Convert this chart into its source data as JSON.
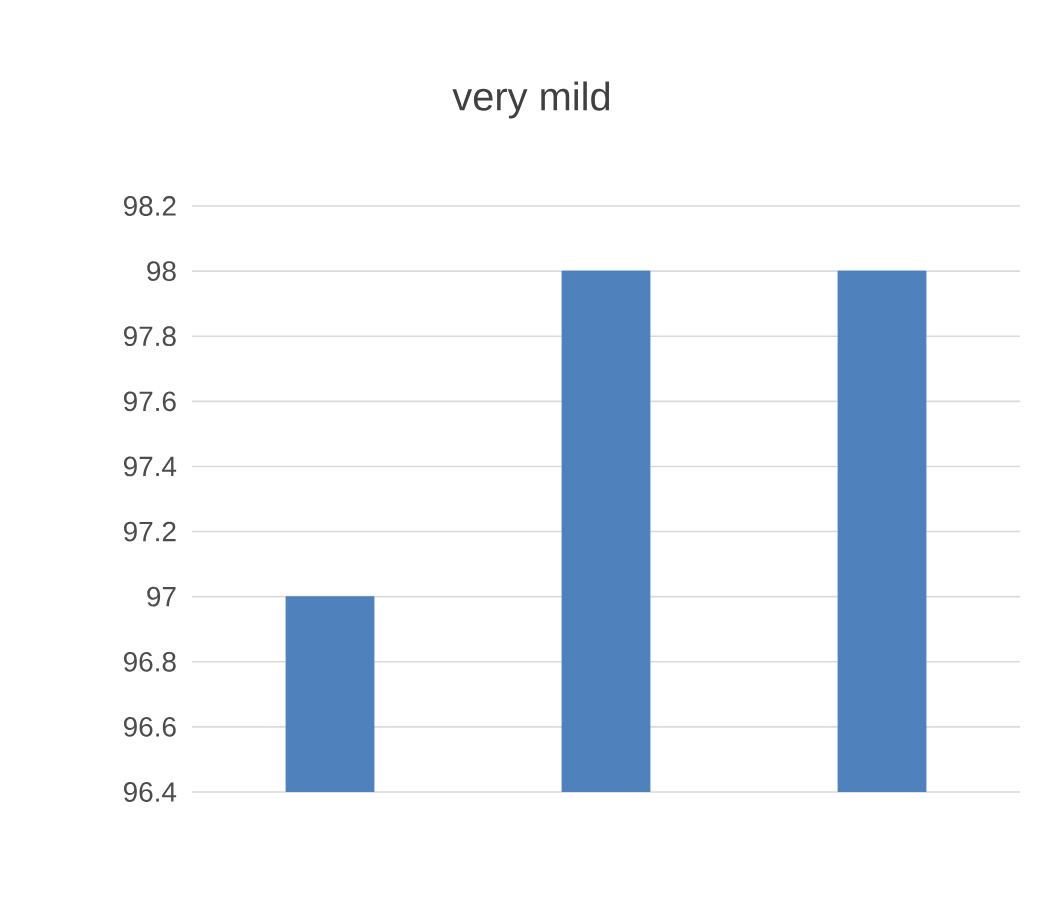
{
  "chart_data": {
    "type": "bar",
    "title": "very mild",
    "categories": [
      null,
      null,
      null
    ],
    "values": [
      97,
      98,
      98
    ],
    "color": "#4f81bd",
    "ylim": [
      96.4,
      98.2
    ],
    "yticks": [
      96.4,
      96.6,
      96.8,
      97,
      97.2,
      97.4,
      97.6,
      97.8,
      98,
      98.2
    ],
    "grid": "y"
  }
}
